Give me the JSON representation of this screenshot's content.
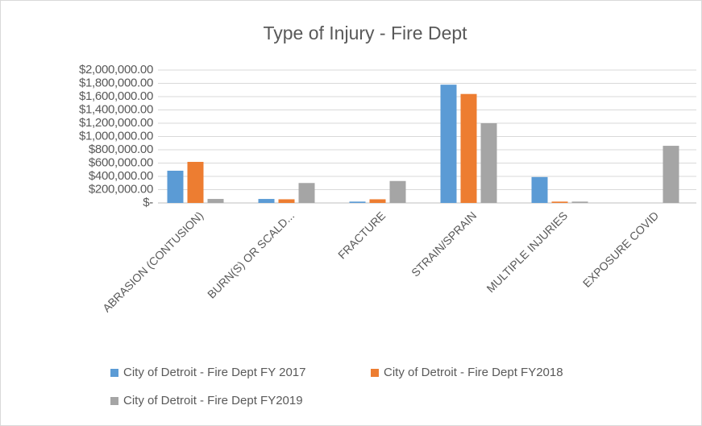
{
  "chart_data": {
    "type": "bar",
    "title": "Type of Injury - Fire Dept",
    "categories": [
      "ABRASION (CONTUSION)",
      "BURN(S) OR SCALD...",
      "FRACTURE",
      "STRAIN/SPRAIN",
      "MULTIPLE INJURIES",
      "EXPOSURE COVID"
    ],
    "series": [
      {
        "name": "City of Detroit - Fire Dept FY 2017",
        "color": "#5b9bd5",
        "values": [
          485000,
          60000,
          20000,
          1780000,
          390000,
          0
        ]
      },
      {
        "name": "City of Detroit - Fire Dept FY2018",
        "color": "#ed7d31",
        "values": [
          618000,
          55000,
          55000,
          1640000,
          20000,
          0
        ]
      },
      {
        "name": "City of Detroit - Fire Dept FY2019",
        "color": "#a5a5a5",
        "values": [
          60000,
          300000,
          330000,
          1200000,
          20000,
          860000
        ]
      }
    ],
    "ylim": [
      0,
      2000000
    ],
    "yticks": [
      {
        "value": 0,
        "label": "$-"
      },
      {
        "value": 200000,
        "label": "$200,000.00"
      },
      {
        "value": 400000,
        "label": "$400,000.00"
      },
      {
        "value": 600000,
        "label": "$600,000.00"
      },
      {
        "value": 800000,
        "label": "$800,000.00"
      },
      {
        "value": 1000000,
        "label": "$1,000,000.00"
      },
      {
        "value": 1200000,
        "label": "$1,200,000.00"
      },
      {
        "value": 1400000,
        "label": "$1,400,000.00"
      },
      {
        "value": 1600000,
        "label": "$1,600,000.00"
      },
      {
        "value": 1800000,
        "label": "$1,800,000.00"
      },
      {
        "value": 2000000,
        "label": "$2,000,000.00"
      }
    ],
    "grid": true,
    "legend": "bottom"
  }
}
